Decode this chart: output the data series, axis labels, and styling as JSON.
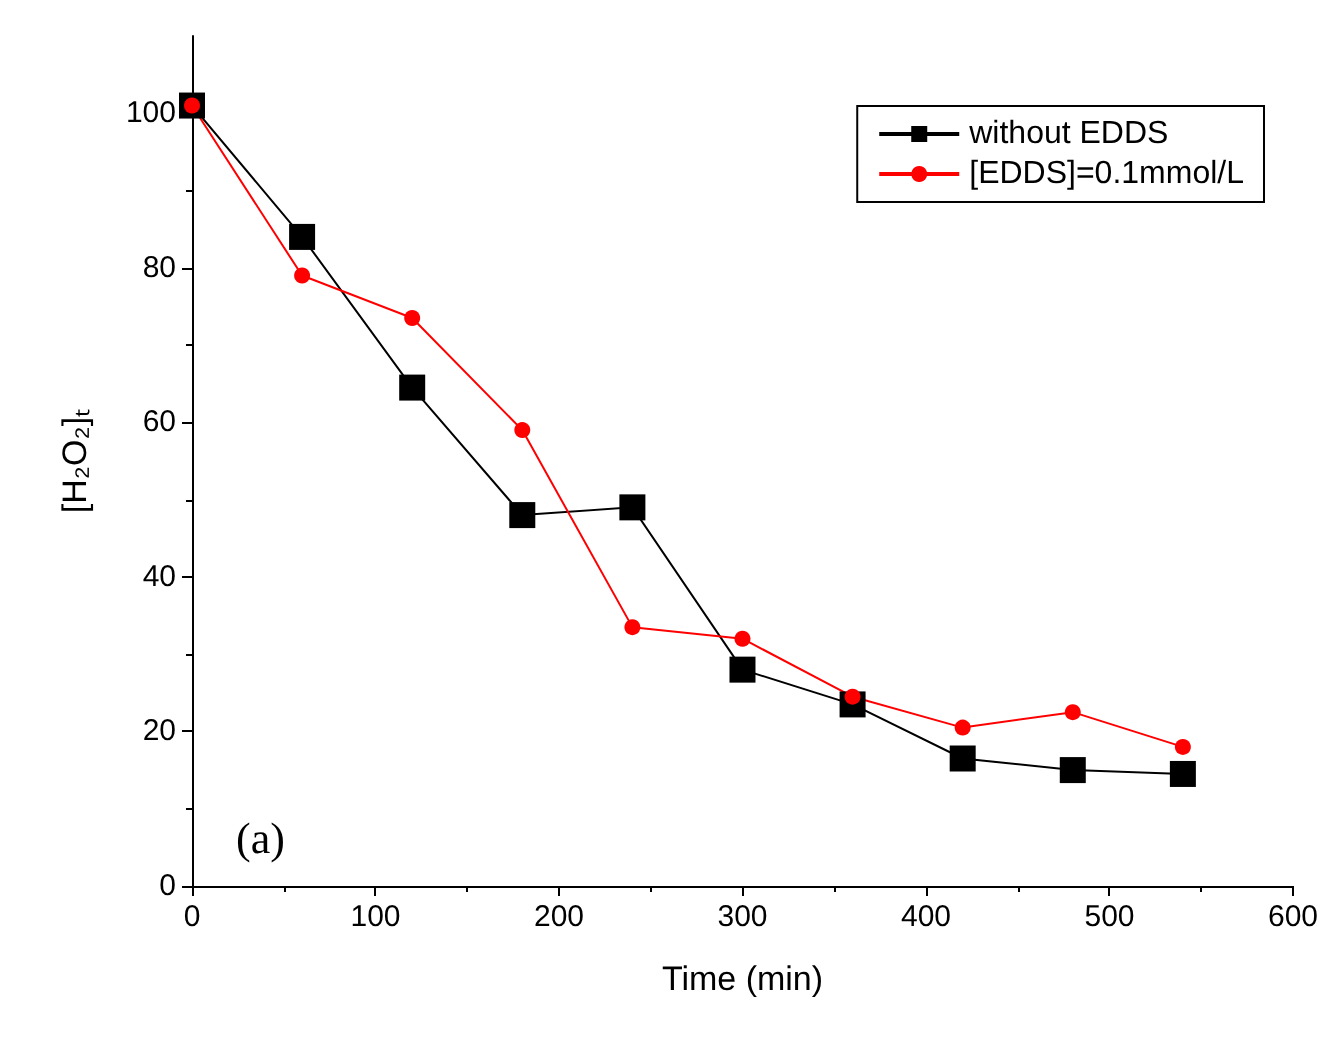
{
  "chart_data": {
    "type": "line",
    "xlabel": "Time (min)",
    "ylabel": "[H₂O₂]ₜ",
    "annotations": [
      "(a)"
    ],
    "x": [
      0,
      60,
      120,
      180,
      240,
      300,
      360,
      420,
      480,
      540
    ],
    "series": [
      {
        "name": "without EDDS",
        "color": "#000000",
        "marker": "square",
        "values": [
          101,
          84,
          64.5,
          48,
          49,
          28,
          23.5,
          16.5,
          15,
          14.5
        ]
      },
      {
        "name": "[EDDS]=0.1mmol/L",
        "color": "#ff0000",
        "marker": "circle",
        "values": [
          101,
          79,
          73.5,
          59,
          33.5,
          32,
          24.5,
          20.5,
          22.5,
          18
        ]
      }
    ],
    "xlim": [
      0,
      600
    ],
    "xticks": [
      0,
      100,
      200,
      300,
      400,
      500,
      600
    ],
    "ylim": [
      0,
      110
    ],
    "yticks": [
      0,
      20,
      40,
      60,
      80,
      100
    ],
    "legend": "top right",
    "grid": false,
    "line_style": "solid"
  }
}
